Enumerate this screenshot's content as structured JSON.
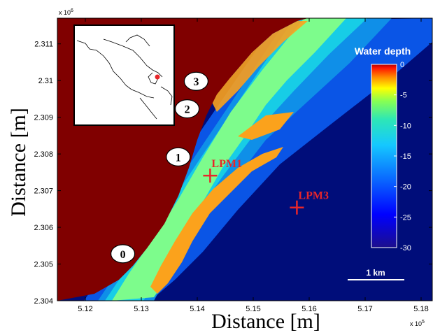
{
  "chart_data": {
    "type": "heatmap",
    "title": "",
    "xlabel": "Distance [m]",
    "ylabel": "Distance [m]",
    "x_exponent_label": "x 10",
    "x_exponent_power": "5",
    "y_exponent_label": "x 10",
    "y_exponent_power": "6",
    "xlim": [
      5.115,
      5.182
    ],
    "ylim": [
      2.304,
      2.3117
    ],
    "x_ticks": [
      "5.12",
      "5.13",
      "5.14",
      "5.15",
      "5.16",
      "5.17",
      "5.18"
    ],
    "y_ticks": [
      "2.304",
      "2.305",
      "2.306",
      "2.307",
      "2.308",
      "2.309",
      "2.31",
      "2.311"
    ],
    "colorbar": {
      "title": "Water depth",
      "range": [
        -30,
        0
      ],
      "ticks": [
        "0",
        "-5",
        "-10",
        "-15",
        "-20",
        "-25",
        "-30"
      ]
    },
    "site_markers": [
      {
        "label": "0",
        "x": 5.1267,
        "y": 2.30528
      },
      {
        "label": "1",
        "x": 5.1366,
        "y": 2.30792
      },
      {
        "label": "2",
        "x": 5.1382,
        "y": 2.30923
      },
      {
        "label": "3",
        "x": 5.1398,
        "y": 2.30998
      }
    ],
    "stations": [
      {
        "label": "LPM1",
        "x": 5.1423,
        "y": 2.30741
      },
      {
        "label": "LPM3",
        "x": 5.1578,
        "y": 2.30654
      }
    ],
    "scale_bar": "1 km",
    "colors": {
      "land": "#800000",
      "shallow": "#7dfc8c",
      "reef_crest": "#fba21c",
      "mid1": "#17cde6",
      "mid2": "#0f8fe8",
      "mid3": "#0a55e6",
      "deep": "#000d7a",
      "marker": "#e8262a"
    }
  }
}
